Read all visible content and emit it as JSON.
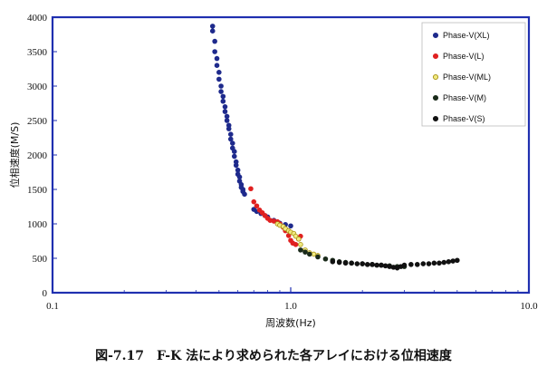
{
  "caption": "図-7.17　F-K 法により求められた各アレイにおける位相速度",
  "chart_data": {
    "type": "scatter",
    "xscale": "log",
    "xlim": [
      0.1,
      10.0
    ],
    "ylim": [
      0,
      4000
    ],
    "xlabel": "周波数(Hz)",
    "ylabel": "位相速度(M/S)",
    "xticks": [
      "0.1",
      "1.0",
      "10.0"
    ],
    "xtick_values": [
      0.1,
      1.0,
      10.0
    ],
    "yticks": [
      "0",
      "500",
      "1000",
      "1500",
      "2000",
      "2500",
      "3000",
      "3500",
      "4000"
    ],
    "ytick_values": [
      0,
      500,
      1000,
      1500,
      2000,
      2500,
      3000,
      3500,
      4000
    ],
    "grid": false,
    "legend_position": "top-right",
    "colors": {
      "frame": "#2030b0"
    },
    "series": [
      {
        "name": "Phase-V(XL)",
        "color": "#1e2a8c",
        "stroke": "#1e2a8c",
        "x": [
          0.47,
          0.47,
          0.48,
          0.48,
          0.49,
          0.49,
          0.5,
          0.5,
          0.51,
          0.51,
          0.52,
          0.52,
          0.53,
          0.53,
          0.54,
          0.54,
          0.55,
          0.55,
          0.56,
          0.56,
          0.57,
          0.57,
          0.58,
          0.58,
          0.59,
          0.59,
          0.6,
          0.6,
          0.61,
          0.61,
          0.62,
          0.62,
          0.63,
          0.63,
          0.64,
          0.7,
          0.72,
          0.75,
          0.78,
          0.8,
          0.85,
          0.9,
          0.95,
          1.0
        ],
        "y": [
          3870,
          3800,
          3650,
          3500,
          3400,
          3300,
          3200,
          3100,
          3000,
          2920,
          2850,
          2780,
          2700,
          2630,
          2560,
          2500,
          2430,
          2380,
          2300,
          2230,
          2170,
          2100,
          2050,
          1980,
          1900,
          1850,
          1780,
          1720,
          1680,
          1620,
          1570,
          1530,
          1500,
          1470,
          1430,
          1210,
          1180,
          1150,
          1120,
          1100,
          1050,
          1010,
          990,
          970
        ]
      },
      {
        "name": "Phase-V(L)",
        "color": "#e02020",
        "stroke": "#e02020",
        "x": [
          0.68,
          0.7,
          0.72,
          0.74,
          0.76,
          0.78,
          0.8,
          0.82,
          0.85,
          0.88,
          0.9,
          0.93,
          0.95,
          0.98,
          1.0,
          1.02,
          1.05,
          1.08,
          1.1
        ],
        "y": [
          1510,
          1320,
          1260,
          1200,
          1160,
          1120,
          1080,
          1050,
          1040,
          1030,
          1000,
          950,
          900,
          830,
          760,
          720,
          700,
          780,
          820
        ]
      },
      {
        "name": "Phase-V(ML)",
        "color": "#f0ea80",
        "stroke": "#a89010",
        "x": [
          0.88,
          0.9,
          0.93,
          0.95,
          0.98,
          1.0,
          1.03,
          1.05,
          1.08,
          1.1,
          1.15,
          1.2,
          1.25,
          1.3
        ],
        "y": [
          1000,
          980,
          960,
          930,
          900,
          880,
          860,
          820,
          780,
          700,
          620,
          580,
          560,
          540
        ]
      },
      {
        "name": "Phase-V(M)",
        "color": "#1a2a1a",
        "stroke": "#1a2a1a",
        "x": [
          1.1,
          1.15,
          1.2,
          1.3,
          1.4,
          1.5,
          1.6,
          1.7,
          1.8,
          2.0,
          2.2,
          2.4,
          2.6,
          2.8,
          3.0
        ],
        "y": [
          620,
          590,
          560,
          520,
          490,
          470,
          450,
          440,
          430,
          420,
          410,
          400,
          390,
          380,
          380
        ]
      },
      {
        "name": "Phase-V(S)",
        "color": "#111111",
        "stroke": "#111111",
        "x": [
          1.5,
          1.6,
          1.7,
          1.8,
          1.9,
          2.0,
          2.1,
          2.2,
          2.3,
          2.4,
          2.5,
          2.6,
          2.7,
          2.8,
          2.9,
          3.0,
          3.2,
          3.4,
          3.6,
          3.8,
          4.0,
          4.2,
          4.4,
          4.6,
          4.8,
          5.0
        ],
        "y": [
          450,
          440,
          430,
          430,
          420,
          420,
          410,
          410,
          400,
          400,
          390,
          380,
          370,
          360,
          380,
          400,
          410,
          410,
          420,
          420,
          430,
          430,
          440,
          450,
          460,
          470
        ]
      }
    ]
  }
}
